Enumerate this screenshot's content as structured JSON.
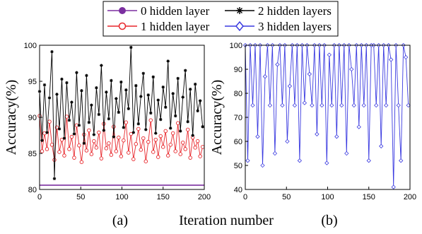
{
  "legend": {
    "items": [
      {
        "label": "0 hidden layer",
        "color": "#7b2fa0",
        "marker": "circle-filled"
      },
      {
        "label": "2 hidden layers",
        "color": "#000000",
        "marker": "asterisk"
      },
      {
        "label": "1 hidden layer",
        "color": "#e8262b",
        "marker": "circle-open"
      },
      {
        "label": "3 hidden layers",
        "color": "#3a3ae0",
        "marker": "diamond-open"
      }
    ]
  },
  "xlabel": "Iteration number",
  "chart_data": [
    {
      "type": "line",
      "panel_label": "(a)",
      "ylabel": "Accuracy(%)",
      "xlim": [
        0,
        200
      ],
      "ylim": [
        80,
        100
      ],
      "xticks": [
        0,
        50,
        100,
        150,
        200
      ],
      "yticks": [
        80,
        85,
        90,
        95,
        100
      ],
      "grid": false,
      "series": [
        {
          "name": "0 hidden layer",
          "color": "#7b2fa0",
          "marker": "none",
          "x": [
            0,
            200
          ],
          "y": [
            80.6,
            80.6
          ]
        },
        {
          "name": "1 hidden layer",
          "color": "#e8262b",
          "marker": "circle-open",
          "x": [
            0,
            3,
            6,
            9,
            12,
            15,
            18,
            21,
            24,
            27,
            30,
            33,
            36,
            39,
            42,
            45,
            48,
            51,
            54,
            57,
            60,
            63,
            66,
            69,
            72,
            75,
            78,
            81,
            84,
            87,
            90,
            93,
            96,
            99,
            102,
            105,
            108,
            111,
            114,
            117,
            120,
            123,
            126,
            129,
            132,
            135,
            138,
            141,
            144,
            147,
            150,
            153,
            156,
            159,
            162,
            165,
            168,
            171,
            174,
            177,
            180,
            183,
            186,
            189,
            192,
            195,
            198
          ],
          "y": [
            90.2,
            85.3,
            87.8,
            85.6,
            89.4,
            86.2,
            84.1,
            88.6,
            85.2,
            86.9,
            84.7,
            90.1,
            85.6,
            87.3,
            84.4,
            88.9,
            86.1,
            83.8,
            87.6,
            85.4,
            88.2,
            84.9,
            86.7,
            85.8,
            87.9,
            84.3,
            89.1,
            85.7,
            86.4,
            84.8,
            88.7,
            85.3,
            87.2,
            84.6,
            86.8,
            89.3,
            85.1,
            87.7,
            84.2,
            86.3,
            88.4,
            85.5,
            87.1,
            83.9,
            86.6,
            89.6,
            85.2,
            86.9,
            84.5,
            87.4,
            85.9,
            88.1,
            84.7,
            86.2,
            87.8,
            85.3,
            89.2,
            84.9,
            86.5,
            85.6,
            88.3,
            84.4,
            87.2,
            85.8,
            86.7,
            84.6,
            85.9
          ]
        },
        {
          "name": "2 hidden layers",
          "color": "#000000",
          "marker": "asterisk",
          "x": [
            0,
            3,
            6,
            9,
            12,
            15,
            18,
            21,
            24,
            27,
            30,
            33,
            36,
            39,
            42,
            45,
            48,
            51,
            54,
            57,
            60,
            63,
            66,
            69,
            72,
            75,
            78,
            81,
            84,
            87,
            90,
            93,
            96,
            99,
            102,
            105,
            108,
            111,
            114,
            117,
            120,
            123,
            126,
            129,
            132,
            135,
            138,
            141,
            144,
            147,
            150,
            153,
            156,
            159,
            162,
            165,
            168,
            171,
            174,
            177,
            180,
            183,
            186,
            189,
            192,
            195,
            198
          ],
          "y": [
            93.6,
            86.8,
            94.5,
            87.9,
            92.7,
            99.1,
            81.5,
            93.2,
            88.4,
            95.3,
            87.1,
            94.8,
            89.6,
            92.1,
            87.7,
            96.2,
            88.9,
            93.7,
            86.4,
            95.8,
            89.3,
            91.7,
            87.6,
            94.1,
            90.4,
            97.2,
            88.2,
            93.5,
            89.8,
            95.1,
            87.3,
            92.6,
            90.7,
            94.9,
            88.6,
            93.8,
            91.2,
            99.7,
            87.9,
            94.4,
            89.1,
            92.9,
            96.1,
            88.3,
            93.1,
            90.6,
            95.6,
            87.8,
            92.4,
            89.7,
            94.2,
            91.4,
            97.8,
            88.5,
            93.3,
            90.2,
            95.4,
            88.1,
            92.8,
            96.5,
            89.4,
            93.9,
            87.5,
            94.6,
            90.9,
            92.3,
            88.7
          ]
        }
      ]
    },
    {
      "type": "line",
      "panel_label": "(b)",
      "ylabel": "Accuracy(%)",
      "xlim": [
        0,
        200
      ],
      "ylim": [
        40,
        100
      ],
      "xticks": [
        0,
        50,
        100,
        150,
        200
      ],
      "yticks": [
        40,
        50,
        60,
        70,
        80,
        90,
        100
      ],
      "grid": false,
      "series": [
        {
          "name": "3 hidden layers",
          "color": "#3a3ae0",
          "marker": "diamond-open",
          "x": [
            0,
            3,
            6,
            9,
            12,
            15,
            18,
            21,
            24,
            27,
            30,
            33,
            36,
            39,
            42,
            45,
            48,
            51,
            54,
            57,
            60,
            63,
            66,
            69,
            72,
            75,
            78,
            81,
            84,
            87,
            90,
            93,
            96,
            99,
            102,
            105,
            108,
            111,
            114,
            117,
            120,
            123,
            126,
            129,
            132,
            135,
            138,
            141,
            144,
            147,
            150,
            153,
            156,
            159,
            162,
            165,
            168,
            171,
            174,
            177,
            180,
            183,
            186,
            189,
            192,
            195,
            198
          ],
          "y": [
            100,
            52,
            100,
            75,
            100,
            62,
            100,
            50,
            87,
            100,
            75,
            100,
            55,
            92,
            100,
            75,
            100,
            60,
            83,
            100,
            75,
            100,
            52,
            100,
            76,
            100,
            88,
            75,
            100,
            63,
            100,
            75,
            100,
            51,
            96,
            75,
            100,
            62,
            100,
            75,
            100,
            55,
            100,
            90,
            75,
            100,
            66,
            100,
            75,
            100,
            52,
            100,
            100,
            75,
            100,
            58,
            100,
            75,
            100,
            94,
            41,
            100,
            75,
            52,
            100,
            95,
            75
          ]
        }
      ]
    }
  ]
}
